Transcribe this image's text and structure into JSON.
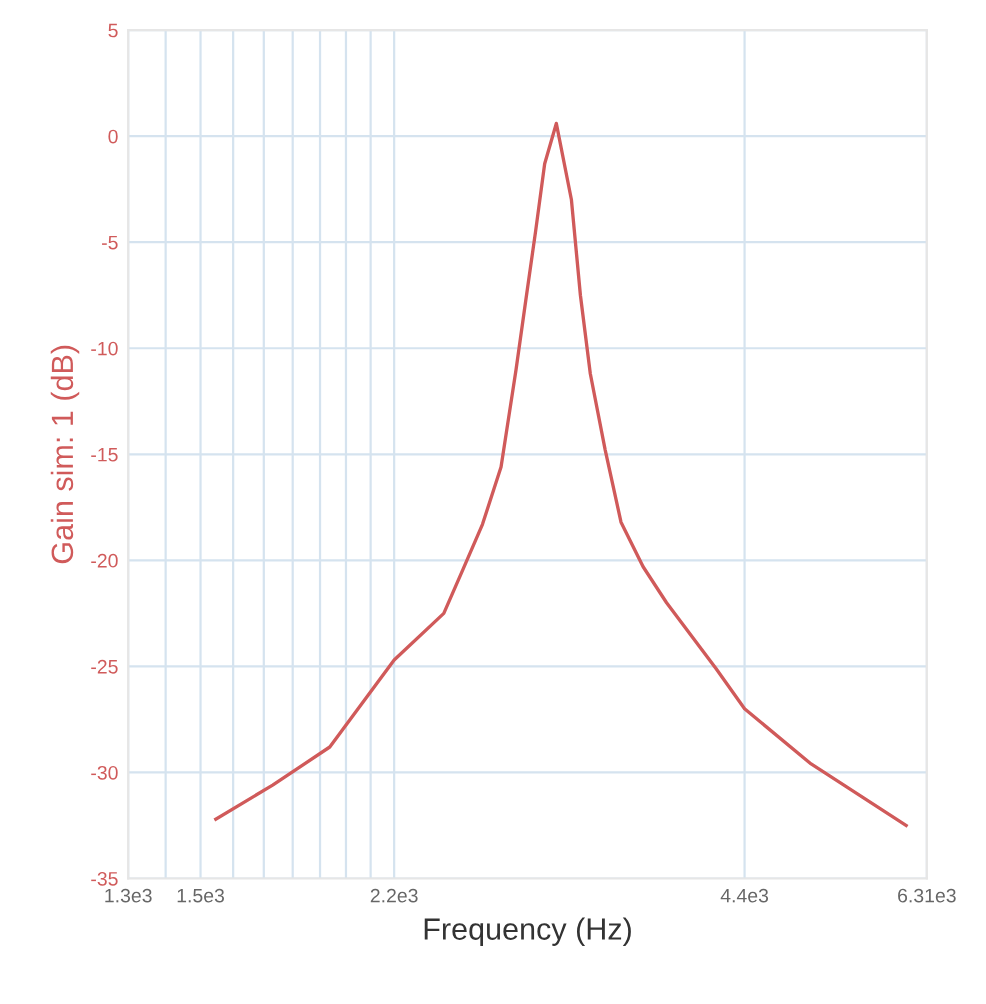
{
  "chart_data": {
    "type": "line",
    "xlabel": "Frequency (Hz)",
    "ylabel": "Gain sim: 1 (dB)",
    "log": "x",
    "grid": true,
    "marker": "none",
    "line_style": "solid",
    "xlim": [
      1300,
      6310
    ],
    "xticks": [
      {
        "value": 1300,
        "label": "1.3e3"
      },
      {
        "value": 1400,
        "label": null
      },
      {
        "value": 1500,
        "label": "1.5e3"
      },
      {
        "value": 1600,
        "label": null
      },
      {
        "value": 1700,
        "label": null
      },
      {
        "value": 1800,
        "label": null
      },
      {
        "value": 1900,
        "label": null
      },
      {
        "value": 2000,
        "label": null
      },
      {
        "value": 2100,
        "label": null
      },
      {
        "value": 2200,
        "label": "2.2e3"
      },
      {
        "value": 4400,
        "label": "4.4e3"
      },
      {
        "value": 6310,
        "label": "6.31e3"
      }
    ],
    "ylim": [
      -35,
      5
    ],
    "yticks": [
      -35,
      -30,
      -25,
      -20,
      -15,
      -10,
      -5,
      0,
      5
    ],
    "x": [
      1546,
      1730,
      1937,
      2200,
      2427,
      2522,
      2620,
      2718,
      2800,
      2855,
      2910,
      2963,
      3032,
      3124,
      3180,
      3243,
      3340,
      3446,
      3600,
      3771,
      4158,
      4400,
      5019,
      6057
    ],
    "series": [
      {
        "color": "#d05a5a",
        "values": [
          -32.2,
          -30.6,
          -28.8,
          -24.7,
          -22.5,
          -20.4,
          -18.3,
          -15.6,
          -11.0,
          -7.7,
          -4.5,
          -1.3,
          0.6,
          -3.0,
          -7.5,
          -11.2,
          -14.8,
          -18.2,
          -20.3,
          -22.0,
          -25.1,
          -27.0,
          -29.6,
          -32.5
        ]
      }
    ]
  }
}
